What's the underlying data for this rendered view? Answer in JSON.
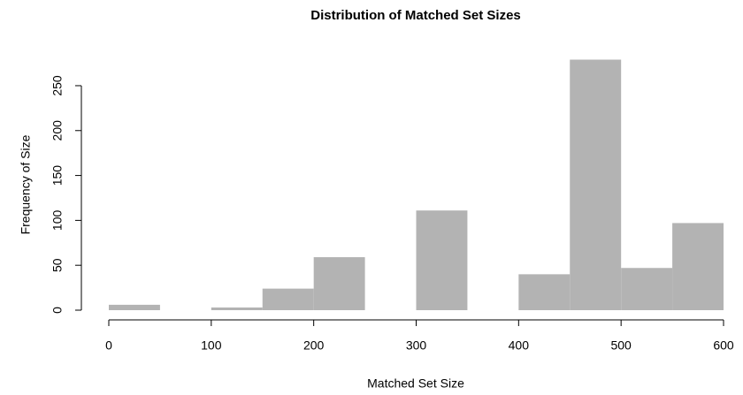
{
  "chart_data": {
    "type": "histogram",
    "title": "Distribution of Matched Set Sizes",
    "xlabel": "Matched Set Size",
    "ylabel": "Frequency of Size",
    "bins": [
      0,
      50,
      100,
      150,
      200,
      250,
      300,
      350,
      400,
      450,
      500,
      550,
      600
    ],
    "values": [
      6,
      0,
      3,
      24,
      59,
      0,
      111,
      0,
      40,
      279,
      47,
      97
    ],
    "color": "#b3b3b3",
    "xlim": [
      0,
      600
    ],
    "xticks": [
      0,
      100,
      200,
      300,
      400,
      500,
      600
    ],
    "ylim": [
      0,
      279
    ],
    "yticks": [
      0,
      50,
      100,
      150,
      200,
      250
    ]
  }
}
